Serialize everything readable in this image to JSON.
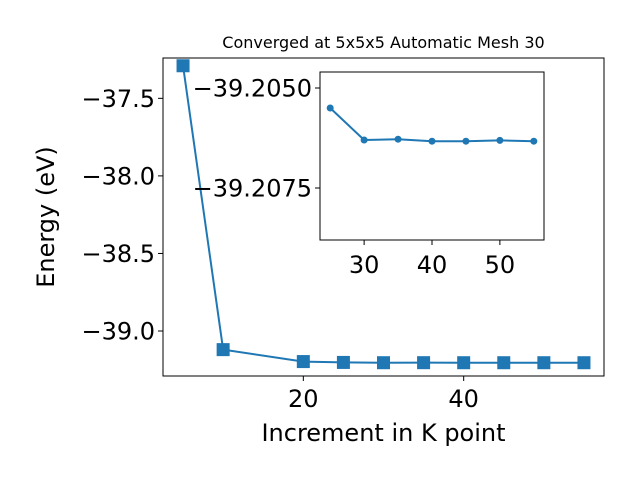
{
  "chart_data": [
    {
      "type": "line",
      "title": "Converged at 5x5x5 Automatic Mesh 30",
      "xlabel": "Increment in K point",
      "ylabel": "Energy (eV)",
      "xlim": [
        2.5,
        57.5
      ],
      "ylim": [
        -39.29,
        -37.24
      ],
      "xticks": [
        20,
        40
      ],
      "xtick_labels": [
        "20",
        "40"
      ],
      "yticks": [
        -37.5,
        -38.0,
        -38.5,
        -39.0
      ],
      "ytick_labels": [
        "−37.5",
        "−38.0",
        "−38.5",
        "−39.0"
      ],
      "grid": false,
      "series": [
        {
          "color": "#1f77b4",
          "marker": "square",
          "x": [
            5,
            10,
            20,
            25,
            30,
            35,
            40,
            45,
            50,
            55
          ],
          "y": [
            -37.29,
            -39.12,
            -39.197,
            -39.2025,
            -39.2043,
            -39.2041,
            -39.2044,
            -39.2044,
            -39.2044,
            -39.2044
          ]
        }
      ]
    },
    {
      "type": "line",
      "title": "",
      "xlabel": "",
      "ylabel": "",
      "xlim": [
        23.5,
        56.5
      ],
      "ylim": [
        -39.2088,
        -39.2046
      ],
      "xticks": [
        30,
        40,
        50
      ],
      "xtick_labels": [
        "30",
        "40",
        "50"
      ],
      "yticks": [
        -39.2075,
        -39.205
      ],
      "ytick_labels": [
        "−39.2075",
        "−39.2050"
      ],
      "grid": false,
      "series": [
        {
          "color": "#1f77b4",
          "marker": "circle",
          "x": [
            25,
            30,
            35,
            40,
            45,
            50,
            55
          ],
          "y": [
            -39.2055,
            -39.2063,
            -39.20628,
            -39.20633,
            -39.20633,
            -39.20631,
            -39.20633
          ]
        }
      ]
    }
  ]
}
